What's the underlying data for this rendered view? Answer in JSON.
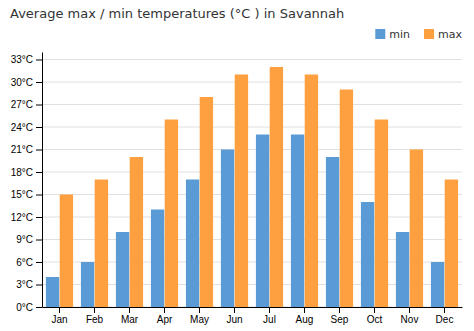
{
  "chart_data": {
    "type": "bar",
    "title": "Average max / min temperatures (°C ) in Savannah",
    "categories": [
      "Jan",
      "Feb",
      "Mar",
      "Apr",
      "May",
      "Jun",
      "Jul",
      "Aug",
      "Sep",
      "Oct",
      "Nov",
      "Dec"
    ],
    "series": [
      {
        "name": "min",
        "color": "#5B9BD5",
        "values": [
          4,
          6,
          10,
          13,
          17,
          21,
          23,
          23,
          20,
          14,
          10,
          6
        ]
      },
      {
        "name": "max",
        "color": "#FFA040",
        "values": [
          15,
          17,
          20,
          25,
          28,
          31,
          32,
          31,
          29,
          25,
          21,
          17
        ]
      }
    ],
    "ylim": [
      0,
      34
    ],
    "yticks": [
      {
        "value": 0,
        "label": "0°C"
      },
      {
        "value": 3,
        "label": "3°C"
      },
      {
        "value": 6,
        "label": "6°C"
      },
      {
        "value": 9,
        "label": "9°C"
      },
      {
        "value": 12,
        "label": "12°C"
      },
      {
        "value": 15,
        "label": "15°C"
      },
      {
        "value": 18,
        "label": "18°C"
      },
      {
        "value": 21,
        "label": "21°C"
      },
      {
        "value": 24,
        "label": "24°C"
      },
      {
        "value": 27,
        "label": "27°C"
      },
      {
        "value": 30,
        "label": "30°C"
      },
      {
        "value": 33,
        "label": "33°C"
      }
    ],
    "grid": true,
    "legend": "upper right"
  }
}
